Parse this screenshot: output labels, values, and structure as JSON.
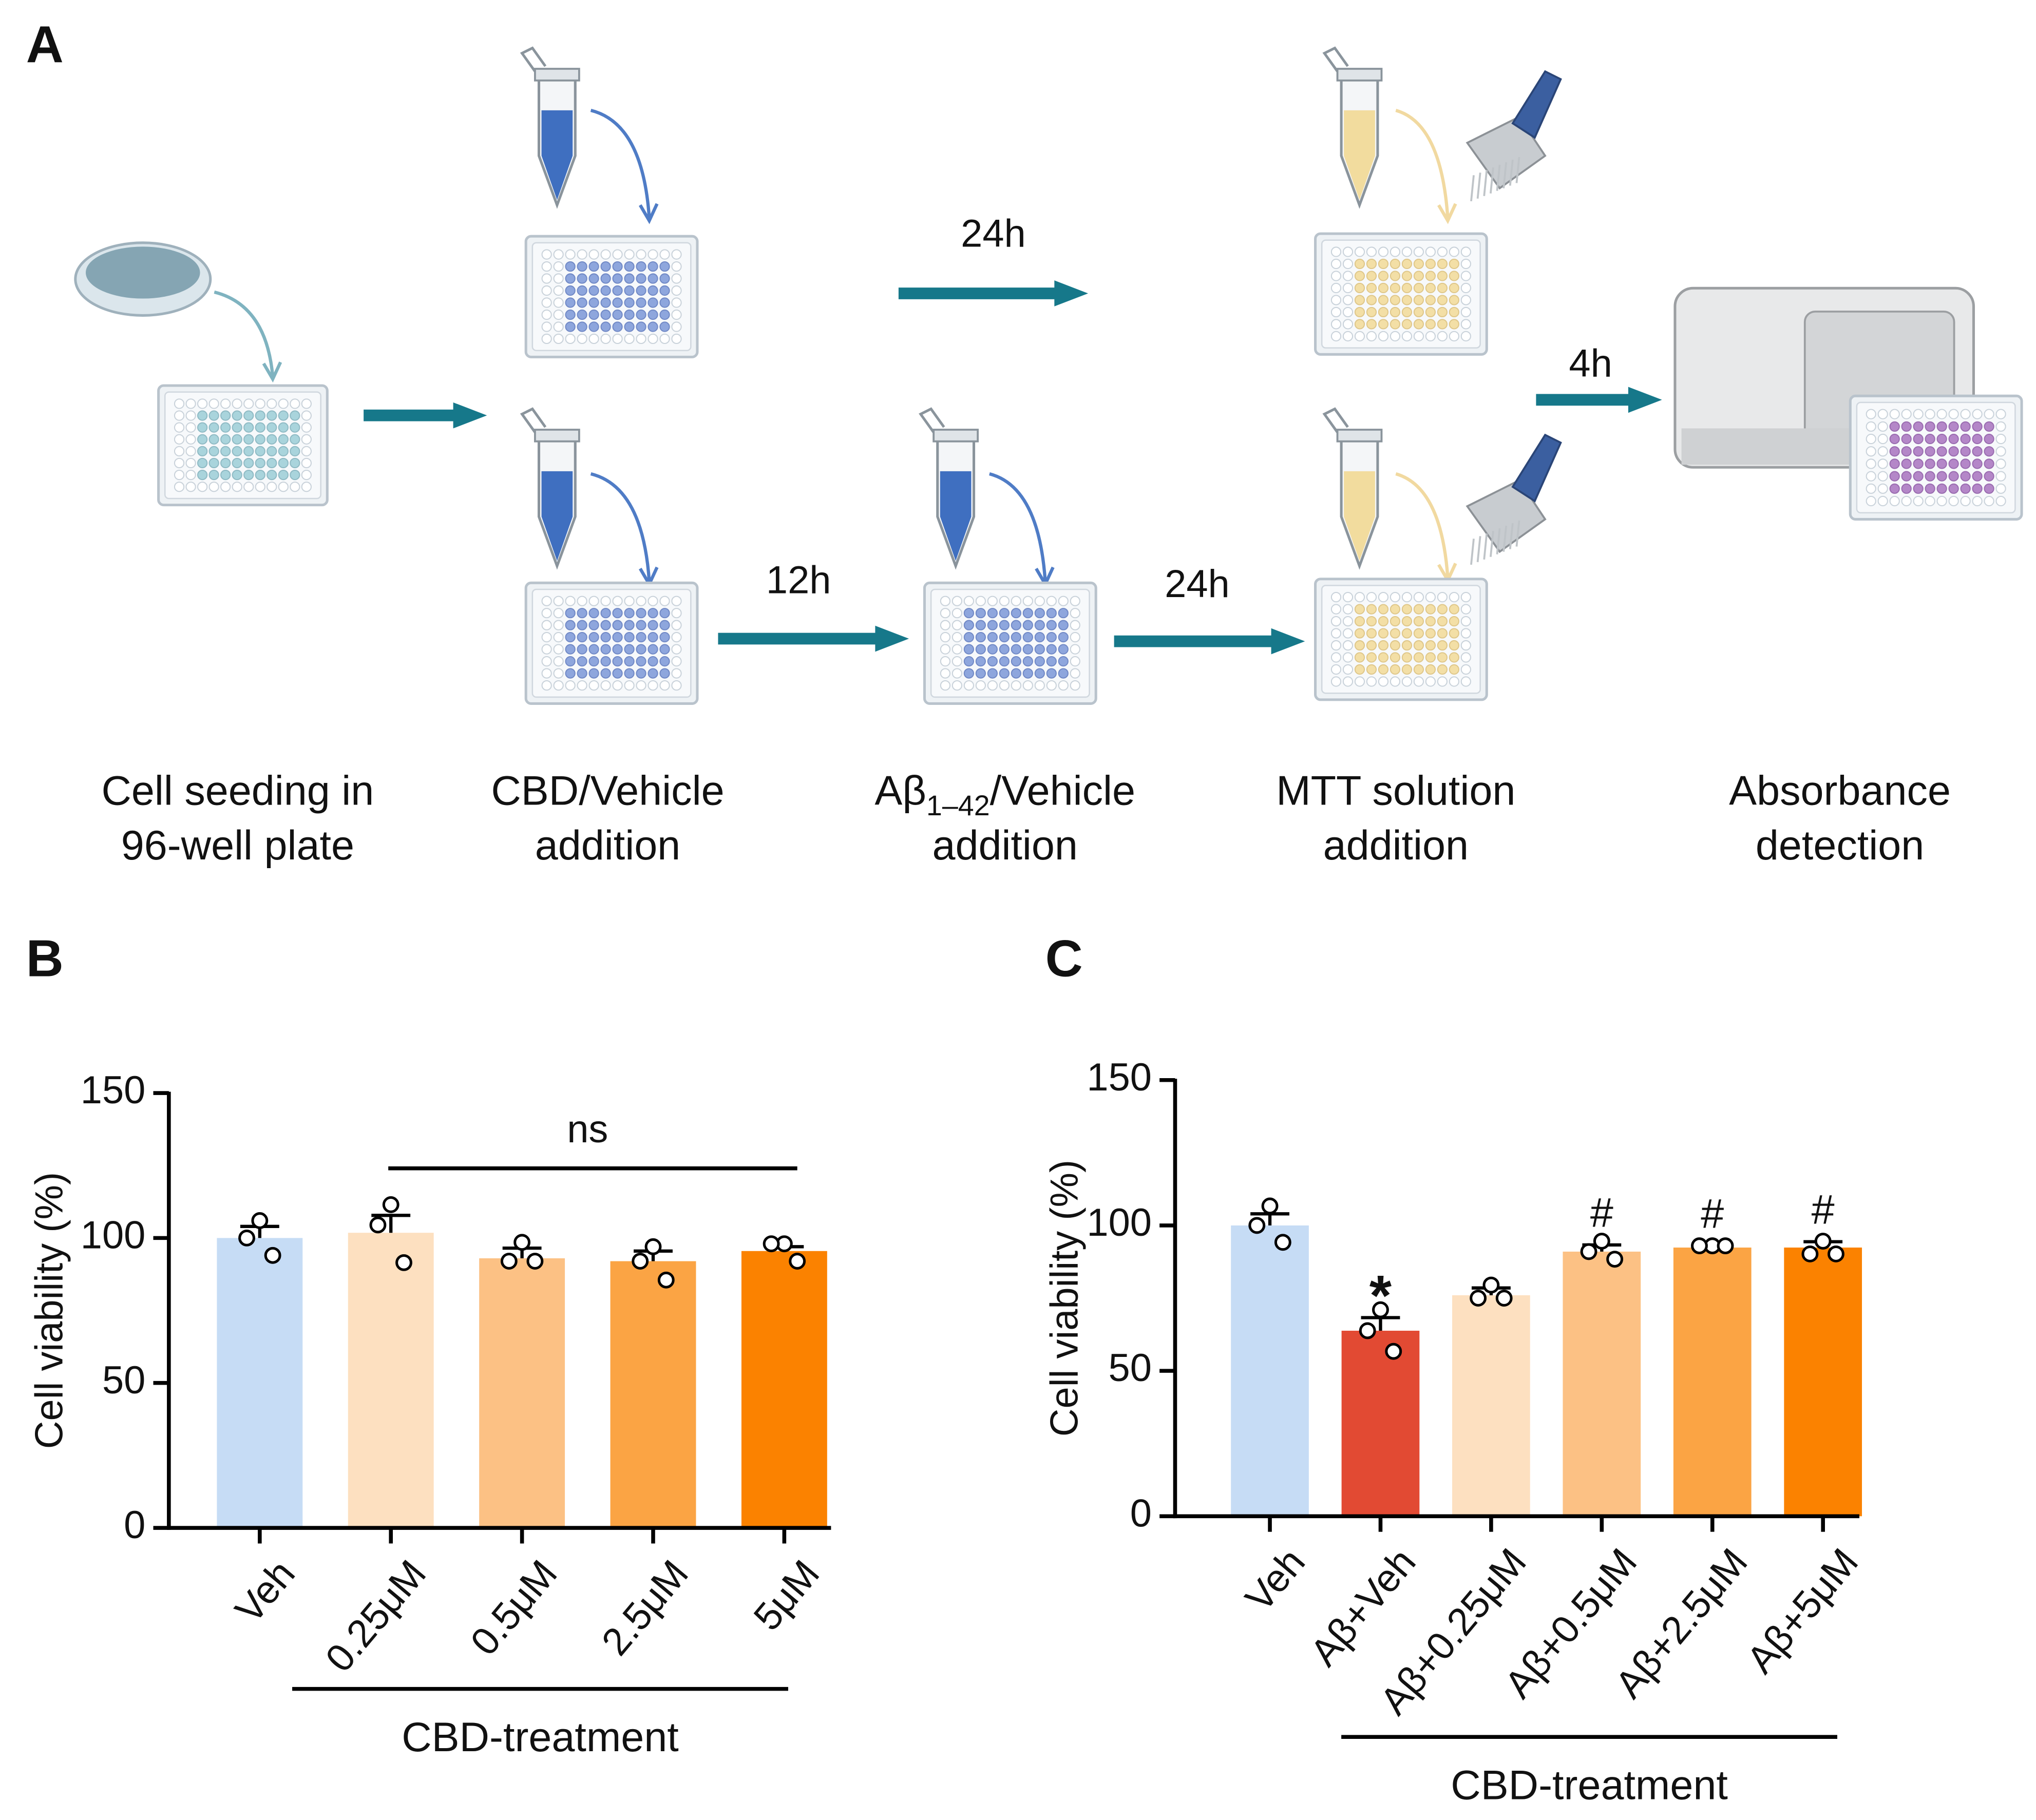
{
  "diagram": {
    "label": "A",
    "steps": [
      {
        "lines": [
          "Cell seeding in",
          "96-well plate"
        ]
      },
      {
        "lines": [
          "CBD/Vehicle",
          "addition"
        ]
      },
      {
        "lines": [
          [
            "Aβ",
            "1–42",
            "/Vehicle"
          ],
          "addition"
        ]
      },
      {
        "lines": [
          "MTT solution",
          "addition"
        ]
      },
      {
        "lines": [
          "Absorbance",
          "detection"
        ]
      }
    ],
    "arrow_labels": [
      "24h",
      "4h",
      "12h",
      "24h"
    ]
  },
  "chart_data": [
    {
      "type": "bar",
      "label": "B",
      "ylabel": "Cell viability (%)",
      "categories": [
        "Veh",
        "0.25μM",
        "0.5μM",
        "2.5μM",
        "5μM"
      ],
      "values": [
        100,
        101.8,
        93,
        92,
        95.5
      ],
      "errors": [
        4,
        6,
        3.5,
        3.5,
        1.5
      ],
      "points": [
        [
          106,
          100,
          94
        ],
        [
          111.5,
          104.5,
          91.5
        ],
        [
          98.5,
          92,
          92
        ],
        [
          97,
          92,
          85.5
        ],
        [
          98,
          98,
          92
        ]
      ],
      "colors": [
        "#c6dcf5",
        "#fde0c0",
        "#fcc184",
        "#fba444",
        "#fb8200"
      ],
      "ylim": [
        0,
        150
      ],
      "yticks": [
        0,
        50,
        100,
        150
      ],
      "annotation": "ns",
      "group_label": "CBD-treatment"
    },
    {
      "type": "bar",
      "label": "C",
      "ylabel": "Cell viability (%)",
      "categories": [
        "Veh",
        "Aβ+Veh",
        "Aβ+0.25μM",
        "Aβ+0.5μM",
        "Aβ+2.5μM",
        "Aβ+5μM"
      ],
      "values": [
        100,
        63.8,
        76,
        91,
        92.4,
        92.4
      ],
      "errors": [
        4,
        4.5,
        2.5,
        2.3,
        0.5,
        2
      ],
      "points": [
        [
          106.7,
          100,
          94.2
        ],
        [
          71,
          63.8,
          56.7
        ],
        [
          79.5,
          75,
          75
        ],
        [
          94.6,
          91,
          88.4
        ],
        [
          93,
          93,
          93
        ],
        [
          94.6,
          90.2,
          90.2
        ]
      ],
      "colors": [
        "#c6dcf5",
        "#e24a33",
        "#fde0c0",
        "#fcc184",
        "#fba444",
        "#fb8200"
      ],
      "ylim": [
        0,
        150
      ],
      "yticks": [
        0,
        50,
        100,
        150
      ],
      "markers": [
        null,
        "*",
        null,
        "#",
        "#",
        "#"
      ],
      "group_label": "CBD-treatment"
    }
  ]
}
